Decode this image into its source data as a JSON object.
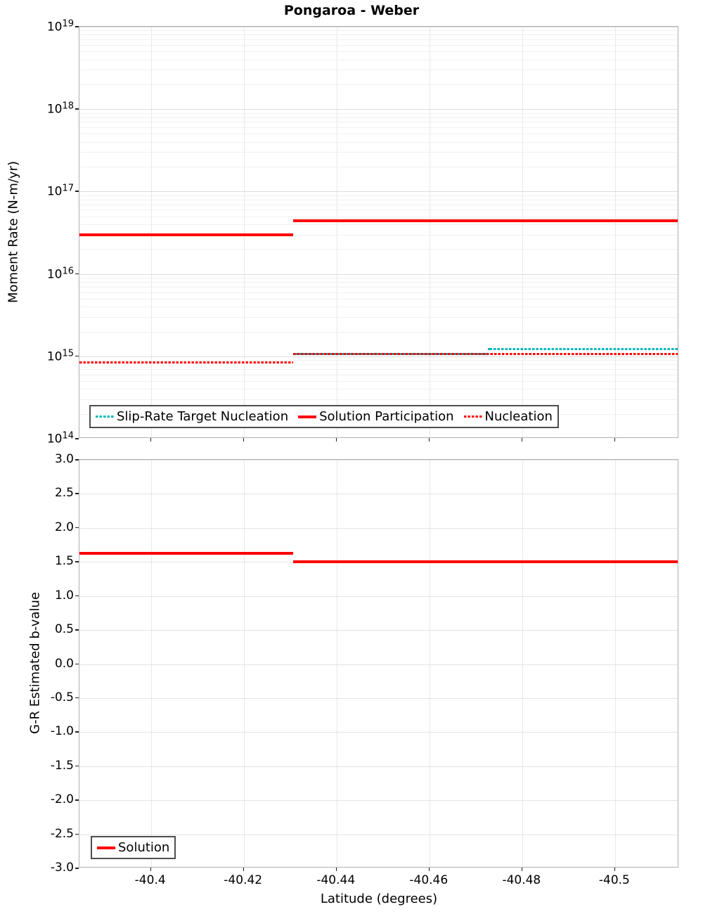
{
  "figure": {
    "title": "Pongaroa - Weber"
  },
  "chart_data": [
    {
      "type": "line",
      "panel": "top",
      "title": "Pongaroa - Weber",
      "ylabel": "Moment Rate (N-m/yr)",
      "yscale": "log",
      "ylim": [
        100000000000000.0,
        1e+19
      ],
      "ytick_base": "10",
      "ytick_exponents": [
        19,
        18,
        17,
        16,
        15,
        14
      ],
      "grid": true,
      "legend_position": "bottom-left-inside",
      "series": [
        {
          "name": "Slip-Rate Target Nucleation",
          "color": "#00b8be",
          "style": "dotted",
          "steps": [
            {
              "x0": -40.4307,
              "x1": -40.4726,
              "y": 1060000000000000.0
            },
            {
              "x0": -40.4726,
              "x1": -40.5138,
              "y": 1220000000000000.0
            }
          ]
        },
        {
          "name": "Solution Participation",
          "color": "#ff0000",
          "style": "solid",
          "steps": [
            {
              "x0": -40.3846,
              "x1": -40.4307,
              "y": 3e+16
            },
            {
              "x0": -40.4307,
              "x1": -40.5138,
              "y": 4.4e+16
            }
          ]
        },
        {
          "name": "Nucleation",
          "color": "#ff0000",
          "style": "dotted",
          "steps": [
            {
              "x0": -40.3846,
              "x1": -40.4307,
              "y": 840000000000000.0
            },
            {
              "x0": -40.4307,
              "x1": -40.5138,
              "y": 1060000000000000.0
            }
          ]
        }
      ]
    },
    {
      "type": "line",
      "panel": "bottom",
      "ylabel": "G-R Estimated b-value",
      "xlabel": "Latitude (degrees)",
      "ylim": [
        -3.0,
        3.0
      ],
      "ytick_labels": [
        "3.0",
        "2.5",
        "2.0",
        "1.5",
        "1.0",
        "0.5",
        "0.0",
        "-0.5",
        "-1.0",
        "-1.5",
        "-2.0",
        "-2.5",
        "-3.0"
      ],
      "ytick_values": [
        3.0,
        2.5,
        2.0,
        1.5,
        1.0,
        0.5,
        0.0,
        -0.5,
        -1.0,
        -1.5,
        -2.0,
        -2.5,
        -3.0
      ],
      "xlim": [
        -40.3846,
        -40.5138
      ],
      "xtick_values": [
        -40.4,
        -40.42,
        -40.44,
        -40.46,
        -40.48,
        -40.5
      ],
      "xtick_labels": [
        "-40.4",
        "-40.42",
        "-40.44",
        "-40.46",
        "-40.48",
        "-40.5"
      ],
      "grid": true,
      "legend_position": "bottom-left-inside",
      "series": [
        {
          "name": "Solution",
          "color": "#ff0000",
          "style": "solid",
          "steps": [
            {
              "x0": -40.3846,
              "x1": -40.4307,
              "y": 1.63
            },
            {
              "x0": -40.4307,
              "x1": -40.5138,
              "y": 1.5
            }
          ]
        }
      ]
    }
  ]
}
